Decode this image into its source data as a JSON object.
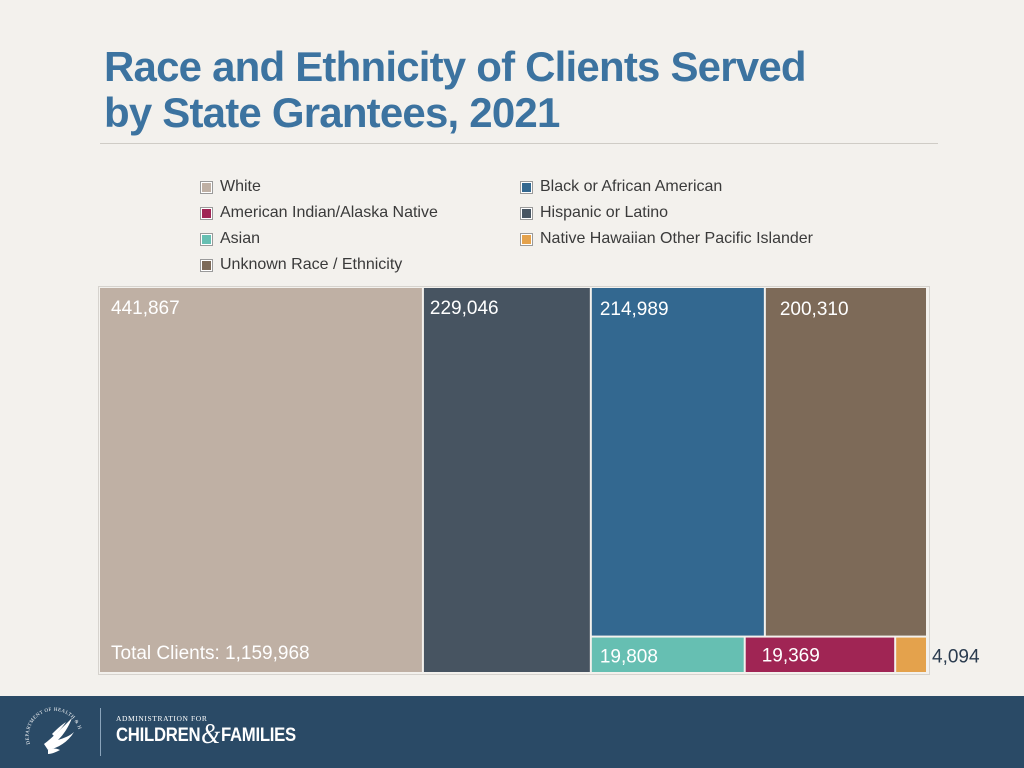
{
  "title": {
    "line1": "Race and Ethnicity of Clients Served",
    "line2": "by State Grantees, 2021"
  },
  "chart_data": {
    "type": "treemap",
    "title": "Race and Ethnicity of Clients Served by State Grantees, 2021",
    "total_label": "Total Clients: 1,159,968",
    "total": 1159968,
    "items": [
      {
        "name": "White",
        "value": 441867,
        "label": "441,867",
        "color": "#bfb0a4"
      },
      {
        "name": "Hispanic or Latino",
        "value": 229046,
        "label": "229,046",
        "color": "#475461"
      },
      {
        "name": "Black or African American",
        "value": 214989,
        "label": "214,989",
        "color": "#336890"
      },
      {
        "name": "Unknown Race / Ethnicity",
        "value": 200310,
        "label": "200,310",
        "color": "#7d6a58"
      },
      {
        "name": "Asian",
        "value": 19808,
        "label": "19,808",
        "color": "#66bfb2"
      },
      {
        "name": "American Indian/Alaska Native",
        "value": 19369,
        "label": "19,369",
        "color": "#a02554"
      },
      {
        "name": "Native Hawaiian Other Pacific Islander",
        "value": 4094,
        "label": "4,094",
        "color": "#e4a24c"
      }
    ],
    "legend": [
      {
        "label": "White",
        "color": "#bfb0a4"
      },
      {
        "label": "Black or African American",
        "color": "#336890"
      },
      {
        "label": "American Indian/Alaska Native",
        "color": "#a02554"
      },
      {
        "label": "Hispanic or Latino",
        "color": "#475461"
      },
      {
        "label": "Asian",
        "color": "#66bfb2"
      },
      {
        "label": "Native Hawaiian Other Pacific Islander",
        "color": "#e4a24c"
      },
      {
        "label": "Unknown Race / Ethnicity",
        "color": "#7d6a58"
      }
    ]
  },
  "footer": {
    "org_small": "ADMINISTRATION FOR",
    "org_part1": "CHILDREN",
    "org_amp": "&",
    "org_part2": "FAMILIES",
    "seal_text": "DEPARTMENT OF HEALTH & HUMAN SERVICES USA",
    "seal_icon": "hhs-eagle-seal-icon"
  },
  "colors": {
    "title": "#3c73a0",
    "footer_bg": "#2a4a66",
    "background": "#f3f1ed"
  }
}
